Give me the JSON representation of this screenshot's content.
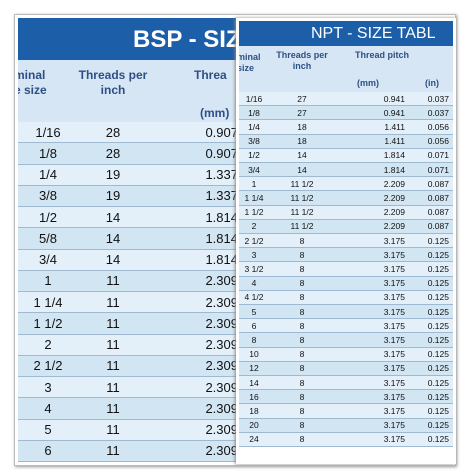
{
  "bsp": {
    "title": "BSP - SIZ",
    "headers": [
      "minal\ne size",
      "Threads per\ninch",
      "Threa",
      "(mm)"
    ],
    "rows": [
      [
        "1/16",
        "28",
        "0.907"
      ],
      [
        "1/8",
        "28",
        "0.907"
      ],
      [
        "1/4",
        "19",
        "1.337"
      ],
      [
        "3/8",
        "19",
        "1.337"
      ],
      [
        "1/2",
        "14",
        "1.814"
      ],
      [
        "5/8",
        "14",
        "1.814"
      ],
      [
        "3/4",
        "14",
        "1.814"
      ],
      [
        "1",
        "11",
        "2.309"
      ],
      [
        "1 1/4",
        "11",
        "2.309"
      ],
      [
        "1 1/2",
        "11",
        "2.309"
      ],
      [
        "2",
        "11",
        "2.309"
      ],
      [
        "2 1/2",
        "11",
        "2.309"
      ],
      [
        "3",
        "11",
        "2.309"
      ],
      [
        "4",
        "11",
        "2.309"
      ],
      [
        "5",
        "11",
        "2.309"
      ],
      [
        "6",
        "11",
        "2.309"
      ]
    ]
  },
  "npt": {
    "title": "NPT - SIZE TABL",
    "headers": [
      "minal\nsize",
      "Threads per\ninch",
      "Thread pitch",
      "(mm)",
      "(in)"
    ],
    "rows": [
      [
        "1/16",
        "27",
        "0.941",
        "0.037"
      ],
      [
        "1/8",
        "27",
        "0.941",
        "0.037"
      ],
      [
        "1/4",
        "18",
        "1.411",
        "0.056"
      ],
      [
        "3/8",
        "18",
        "1.411",
        "0.056"
      ],
      [
        "1/2",
        "14",
        "1.814",
        "0.071"
      ],
      [
        "3/4",
        "14",
        "1.814",
        "0.071"
      ],
      [
        "1",
        "11 1/2",
        "2.209",
        "0.087"
      ],
      [
        "1 1/4",
        "11 1/2",
        "2.209",
        "0.087"
      ],
      [
        "1 1/2",
        "11 1/2",
        "2.209",
        "0.087"
      ],
      [
        "2",
        "11 1/2",
        "2.209",
        "0.087"
      ],
      [
        "2 1/2",
        "8",
        "3.175",
        "0.125"
      ],
      [
        "3",
        "8",
        "3.175",
        "0.125"
      ],
      [
        "3 1/2",
        "8",
        "3.175",
        "0.125"
      ],
      [
        "4",
        "8",
        "3.175",
        "0.125"
      ],
      [
        "4 1/2",
        "8",
        "3.175",
        "0.125"
      ],
      [
        "5",
        "8",
        "3.175",
        "0.125"
      ],
      [
        "6",
        "8",
        "3.175",
        "0.125"
      ],
      [
        "8",
        "8",
        "3.175",
        "0.125"
      ],
      [
        "10",
        "8",
        "3.175",
        "0.125"
      ],
      [
        "12",
        "8",
        "3.175",
        "0.125"
      ],
      [
        "14",
        "8",
        "3.175",
        "0.125"
      ],
      [
        "16",
        "8",
        "3.175",
        "0.125"
      ],
      [
        "18",
        "8",
        "3.175",
        "0.125"
      ],
      [
        "20",
        "8",
        "3.175",
        "0.125"
      ],
      [
        "24",
        "8",
        "3.175",
        "0.125"
      ]
    ]
  }
}
